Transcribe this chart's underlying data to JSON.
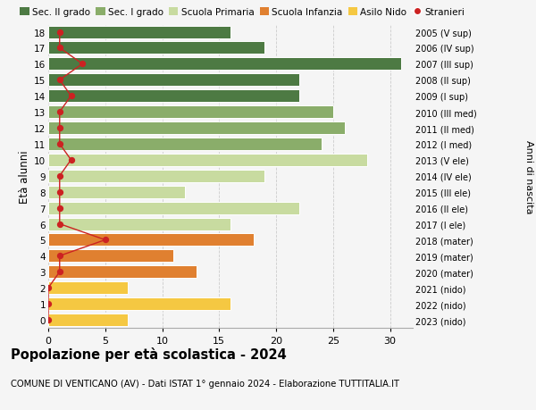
{
  "ages": [
    0,
    1,
    2,
    3,
    4,
    5,
    6,
    7,
    8,
    9,
    10,
    11,
    12,
    13,
    14,
    15,
    16,
    17,
    18
  ],
  "labels_right": [
    "2023 (nido)",
    "2022 (nido)",
    "2021 (nido)",
    "2020 (mater)",
    "2019 (mater)",
    "2018 (mater)",
    "2017 (I ele)",
    "2016 (II ele)",
    "2015 (III ele)",
    "2014 (IV ele)",
    "2013 (V ele)",
    "2012 (I med)",
    "2011 (II med)",
    "2010 (III med)",
    "2009 (I sup)",
    "2008 (II sup)",
    "2007 (III sup)",
    "2006 (IV sup)",
    "2005 (V sup)"
  ],
  "bar_values": [
    7,
    16,
    7,
    13,
    11,
    18,
    16,
    22,
    12,
    19,
    28,
    24,
    26,
    25,
    22,
    22,
    31,
    19,
    16
  ],
  "stranieri": [
    0,
    0,
    0,
    1,
    1,
    5,
    1,
    1,
    1,
    1,
    2,
    1,
    1,
    1,
    2,
    1,
    3,
    1,
    1
  ],
  "bar_colors": [
    "#f5c842",
    "#f5c842",
    "#f5c842",
    "#e08030",
    "#e08030",
    "#e08030",
    "#c8dba0",
    "#c8dba0",
    "#c8dba0",
    "#c8dba0",
    "#c8dba0",
    "#8aad6a",
    "#8aad6a",
    "#8aad6a",
    "#4d7a43",
    "#4d7a43",
    "#4d7a43",
    "#4d7a43",
    "#4d7a43"
  ],
  "legend_labels": [
    "Sec. II grado",
    "Sec. I grado",
    "Scuola Primaria",
    "Scuola Infanzia",
    "Asilo Nido",
    "Stranieri"
  ],
  "legend_colors": [
    "#4d7a43",
    "#8aad6a",
    "#c8dba0",
    "#e08030",
    "#f5c842",
    "#cc2222"
  ],
  "stranieri_color": "#cc2222",
  "title_bold": "Popolazione per età scolastica - 2024",
  "subtitle": "COMUNE DI VENTICANO (AV) - Dati ISTAT 1° gennaio 2024 - Elaborazione TUTTITALIA.IT",
  "ylabel_left": "Età alunni",
  "ylabel_right": "Anni di nascita",
  "bg_color": "#f5f5f5",
  "grid_color": "#cccccc",
  "xlim": [
    0,
    32
  ],
  "xticks": [
    0,
    5,
    10,
    15,
    20,
    25,
    30
  ]
}
